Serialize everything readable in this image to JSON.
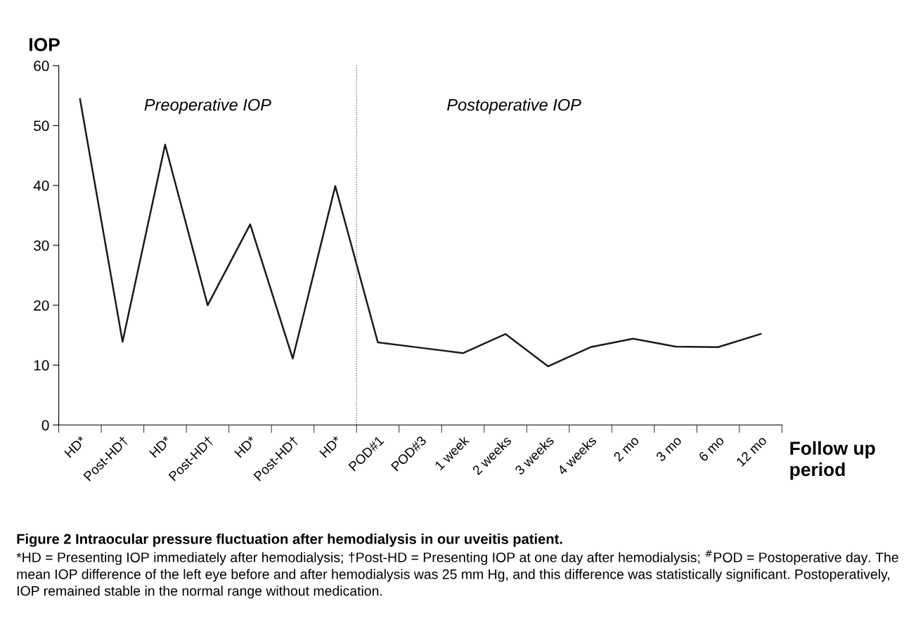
{
  "chart_data": {
    "type": "line",
    "title": "Figure 2 Intraocular pressure fluctuation after hemodialysis in our uveitis patient.",
    "ylabel": "IOP",
    "xlabel": "Follow up\nperiod",
    "categories": [
      "HD*",
      "Post-HD†",
      "HD*",
      "Post-HD†",
      "HD*",
      "Post-HD†",
      "HD*",
      "POD#1",
      "POD#3",
      "1 week",
      "2 weeks",
      "3 weeks",
      "4 weeks",
      "2 mo",
      "3 mo",
      "6 mo",
      "12 mo"
    ],
    "series": [
      {
        "color": "#1a1a1a",
        "values": [
          54.4,
          13.9,
          46.8,
          20.0,
          33.5,
          11.1,
          39.9,
          13.8,
          12.9,
          12.0,
          15.2,
          9.8,
          13.0,
          14.4,
          13.1,
          13.0,
          15.2
        ]
      }
    ],
    "ylim": [
      0,
      60
    ],
    "yticks": [
      0,
      10,
      20,
      30,
      40,
      50,
      60
    ],
    "annotations": [
      "Preoperative IOP",
      "Postoperative IOP",
      "*HD = Presenting IOP immediately after hemodialysis; †Post-HD = Presenting IOP at one day after hemodialysis; $^{#}$POD = Postoperative day. The mean IOP difference of the left eye before and after hemodialysis was 25 mm Hg, and this difference was statistically significant. Postoperatively, IOP remained stable in the normal range without medication."
    ],
    "grid": false,
    "legend": false,
    "marker": "none",
    "line_style": "solid"
  }
}
